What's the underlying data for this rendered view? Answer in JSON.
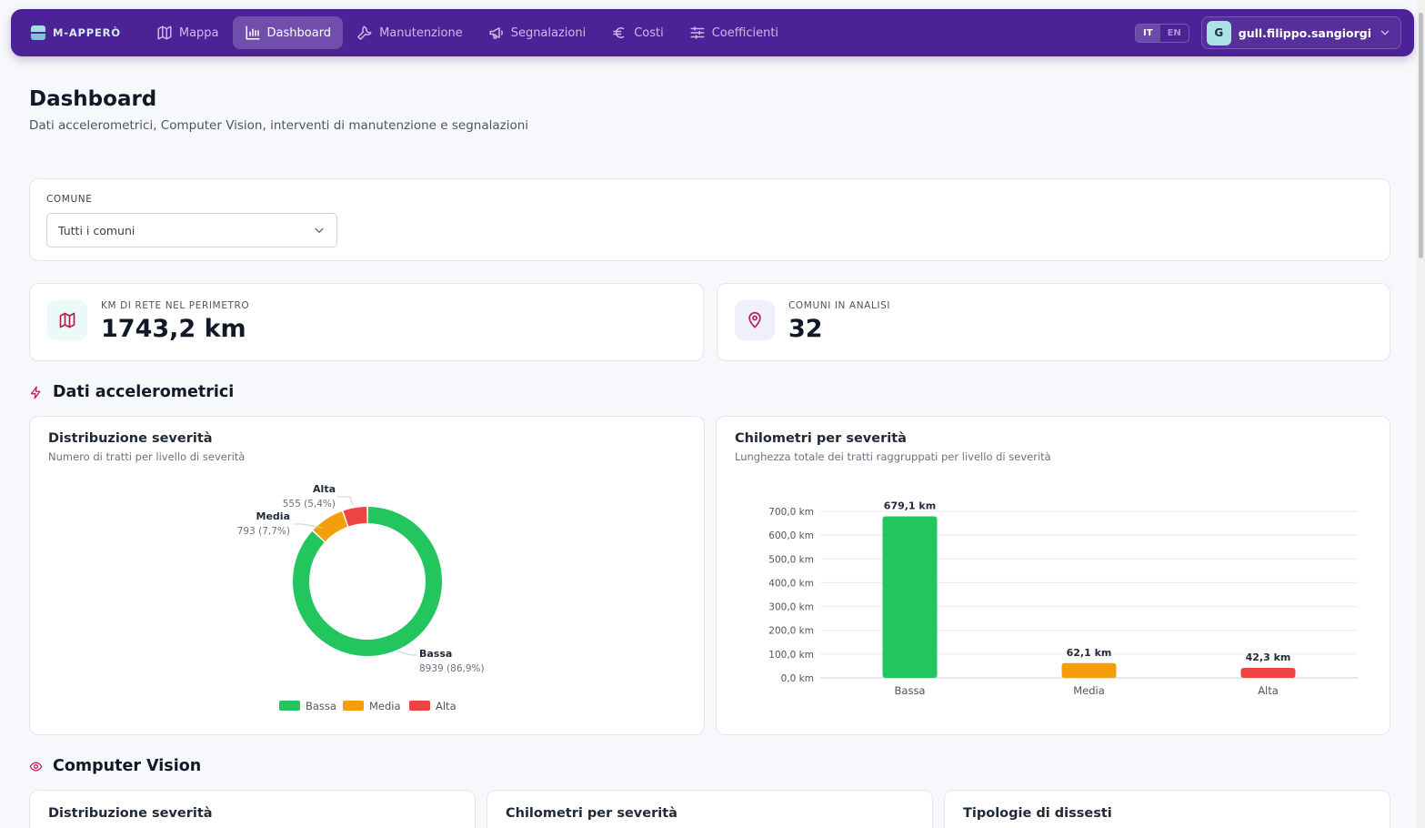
{
  "nav": {
    "brand": "M-APPERÒ",
    "items": [
      {
        "label": "Mappa",
        "icon": "map-icon",
        "active": false
      },
      {
        "label": "Dashboard",
        "icon": "bar-chart-icon",
        "active": true
      },
      {
        "label": "Manutenzione",
        "icon": "wrench-icon",
        "active": false
      },
      {
        "label": "Segnalazioni",
        "icon": "megaphone-icon",
        "active": false
      },
      {
        "label": "Costi",
        "icon": "euro-icon",
        "active": false
      },
      {
        "label": "Coefficienti",
        "icon": "sliders-icon",
        "active": false
      }
    ],
    "lang": {
      "it": "IT",
      "en": "EN",
      "selected": "IT"
    },
    "user": {
      "initial": "G",
      "name": "gull.filippo.sangiorgi"
    }
  },
  "header": {
    "title": "Dashboard",
    "subtitle": "Dati accelerometrici, Computer Vision, interventi di manutenzione e segnalazioni"
  },
  "filter": {
    "label": "COMUNE",
    "value": "Tutti i comuni"
  },
  "stats": [
    {
      "label": "KM DI RETE NEL PERIMETRO",
      "value": "1743,2 km",
      "icon": "map-icon"
    },
    {
      "label": "COMUNI IN ANALISI",
      "value": "32",
      "icon": "map-pin-icon"
    }
  ],
  "sections": {
    "accel": {
      "title": "Dati accelerometrici",
      "icon": "lightning-icon"
    },
    "cv": {
      "title": "Computer Vision",
      "icon": "eye-icon"
    }
  },
  "colors": {
    "bassa": "#22c55e",
    "media": "#f59e0b",
    "alta": "#ef4444",
    "brand": "#4c2396"
  },
  "donut_card": {
    "title": "Distribuzione severità",
    "subtitle": "Numero di tratti per livello di severità"
  },
  "bar_card": {
    "title": "Chilometri per severità",
    "subtitle": "Lunghezza totale dei tratti raggruppati per livello di severità"
  },
  "cv_cards": [
    {
      "title": "Distribuzione severità"
    },
    {
      "title": "Chilometri per severità"
    },
    {
      "title": "Tipologie di dissesti"
    }
  ],
  "chart_data": [
    {
      "type": "pie",
      "title": "Distribuzione severità",
      "labels": [
        "Bassa",
        "Media",
        "Alta"
      ],
      "values": [
        8939,
        793,
        555
      ],
      "value_labels": [
        "8939 (86,9%)",
        "793 (7,7%)",
        "555 (5,4%)"
      ],
      "legend": {
        "position": "bottom",
        "entries": [
          "Bassa",
          "Media",
          "Alta"
        ]
      }
    },
    {
      "type": "bar",
      "title": "Chilometri per severità",
      "categories": [
        "Bassa",
        "Media",
        "Alta"
      ],
      "values": [
        679.1,
        62.1,
        42.3
      ],
      "value_labels": [
        "679,1 km",
        "62,1 km",
        "42,3 km"
      ],
      "ylim": [
        0,
        700
      ],
      "yticks": [
        "0,0 km",
        "100,0 km",
        "200,0 km",
        "300,0 km",
        "400,0 km",
        "500,0 km",
        "600,0 km",
        "700,0 km"
      ],
      "grid": true
    }
  ]
}
